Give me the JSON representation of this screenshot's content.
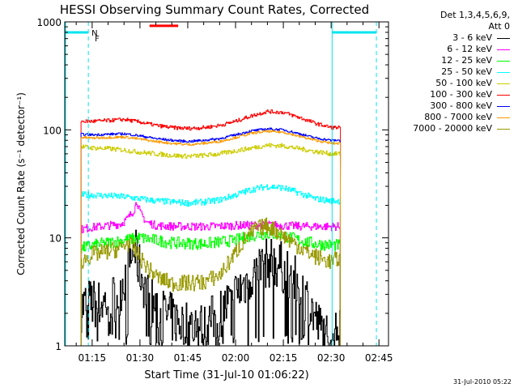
{
  "chart_data": {
    "type": "line",
    "title": "HESSI Observing Summary Count Rates, Corrected",
    "xlabel": "Start Time (31-Jul-10 01:06:22)",
    "ylabel": "Corrected Count Rate (s⁻¹ detector⁻¹)",
    "yscale": "log",
    "ylim": [
      1,
      1000
    ],
    "yticks": [
      "1",
      "10",
      "100",
      "1000"
    ],
    "xlim_min": [
      66.4,
      168
    ],
    "xticks": [
      {
        "min": 75,
        "label": "01:15"
      },
      {
        "min": 90,
        "label": "01:30"
      },
      {
        "min": 105,
        "label": "01:45"
      },
      {
        "min": 120,
        "label": "02:00"
      },
      {
        "min": 135,
        "label": "02:15"
      },
      {
        "min": 150,
        "label": "02:30"
      },
      {
        "min": 165,
        "label": "02:45"
      }
    ],
    "x_unit": "minutes after 00:00 UT, 31-Jul-10",
    "data_start_min": 71.5,
    "data_end_min": 152.8,
    "legend_header": [
      "Det 1,3,4,5,6,9,",
      "Att 0"
    ],
    "series": [
      {
        "name": "3 - 6 keV",
        "color": "#000000",
        "x": [
          71.5,
          74,
          77,
          80,
          83,
          86,
          88,
          90,
          92,
          95,
          100,
          105,
          110,
          115,
          120,
          125,
          128,
          131,
          134,
          137,
          140,
          143,
          146,
          148,
          150,
          152,
          152.8
        ],
        "y": [
          2.3,
          2.5,
          2.4,
          2.6,
          3.0,
          5.0,
          8.0,
          5.0,
          3.0,
          2.2,
          1.8,
          1.5,
          1.5,
          2.0,
          3.0,
          4.5,
          5.5,
          6.0,
          5.5,
          4.5,
          3.5,
          2.5,
          1.5,
          1.3,
          1.2,
          1.2,
          2.0
        ]
      },
      {
        "name": "6 - 12 keV",
        "color": "#ff00ff",
        "x": [
          71.5,
          75,
          80,
          84,
          86,
          88,
          89,
          90,
          92,
          95,
          100,
          110,
          120,
          130,
          140,
          152.8
        ],
        "y": [
          12,
          12.5,
          13,
          13.5,
          15,
          18,
          22,
          17,
          14,
          13,
          12.8,
          12.7,
          13,
          13.2,
          12.8,
          12.7
        ]
      },
      {
        "name": "12 - 25 keV",
        "color": "#00ff00",
        "x": [
          71.5,
          75,
          80,
          85,
          90,
          95,
          100,
          110,
          120,
          125,
          130,
          135,
          140,
          145,
          152.8
        ],
        "y": [
          8,
          8.5,
          9,
          9.5,
          10,
          9.5,
          9.0,
          8.8,
          9.5,
          10.5,
          11,
          10.5,
          9.5,
          8.8,
          8.5
        ]
      },
      {
        "name": "25 - 50 keV",
        "color": "#00ffff",
        "x": [
          71.5,
          75,
          80,
          85,
          90,
          95,
          100,
          105,
          110,
          115,
          120,
          125,
          130,
          135,
          140,
          145,
          150,
          152.8
        ],
        "y": [
          25,
          25,
          24.5,
          24,
          23,
          22,
          21.5,
          21,
          21.5,
          22.5,
          25,
          28,
          30,
          29,
          26,
          23,
          22,
          22
        ]
      },
      {
        "name": "50 - 100 keV",
        "color": "#cccc00",
        "x": [
          71.5,
          75,
          80,
          85,
          90,
          95,
          100,
          105,
          110,
          115,
          120,
          125,
          130,
          135,
          140,
          145,
          150,
          152.8
        ],
        "y": [
          70,
          68,
          67,
          65,
          62,
          60,
          58,
          57,
          58,
          60,
          64,
          68,
          72,
          71,
          67,
          63,
          60,
          60
        ]
      },
      {
        "name": "100 - 300 keV",
        "color": "#ff0000",
        "x": [
          71.5,
          75,
          80,
          85,
          90,
          95,
          100,
          105,
          110,
          115,
          120,
          125,
          130,
          135,
          140,
          145,
          150,
          152.8
        ],
        "y": [
          120,
          120,
          122,
          125,
          118,
          110,
          105,
          103,
          105,
          110,
          120,
          135,
          148,
          145,
          130,
          115,
          105,
          105
        ]
      },
      {
        "name": "300 - 800 keV",
        "color": "#0000ff",
        "x": [
          71.5,
          75,
          80,
          85,
          90,
          95,
          100,
          105,
          110,
          115,
          120,
          125,
          130,
          135,
          140,
          145,
          150,
          152.8
        ],
        "y": [
          91,
          90,
          91,
          92,
          88,
          83,
          80,
          78,
          80,
          83,
          90,
          98,
          102,
          100,
          92,
          84,
          80,
          80
        ]
      },
      {
        "name": "800 - 7000 keV",
        "color": "#ff9900",
        "x": [
          71.5,
          75,
          80,
          85,
          90,
          95,
          100,
          105,
          110,
          115,
          120,
          125,
          130,
          135,
          140,
          145,
          150,
          152.8
        ],
        "y": [
          85,
          84,
          85,
          86,
          82,
          78,
          75,
          73,
          75,
          78,
          85,
          93,
          97,
          95,
          87,
          80,
          75,
          75
        ]
      },
      {
        "name": "7000 - 20000 keV",
        "color": "#999900",
        "x": [
          71.5,
          75,
          80,
          84,
          86,
          88,
          90,
          93,
          96,
          100,
          105,
          110,
          115,
          118,
          122,
          126,
          130,
          134,
          138,
          142,
          146,
          150,
          152.8
        ],
        "y": [
          6,
          7,
          7.5,
          8,
          9,
          8,
          6.5,
          5,
          4.2,
          3.8,
          3.8,
          3.9,
          4.5,
          6,
          9,
          12,
          13,
          11,
          9,
          7.5,
          6.5,
          6,
          6.5
        ]
      }
    ],
    "annotations": {
      "saa_start_min": 150.3,
      "saa_end_min": 164.2,
      "night_left_end_min": 73.8,
      "night_markers": [
        "N",
        "F"
      ],
      "flare_bar_start_min": 93,
      "flare_bar_end_min": 102,
      "flare_bar_y": 920
    },
    "grid": false,
    "legend_placement": "right"
  },
  "timestamp": "31-Jul-2010 05:22",
  "colors": {
    "saa": "#00e5ee",
    "flare_bar": "#ff0000",
    "marker_n": "#00e5ee",
    "marker_f": "#ff0000"
  }
}
